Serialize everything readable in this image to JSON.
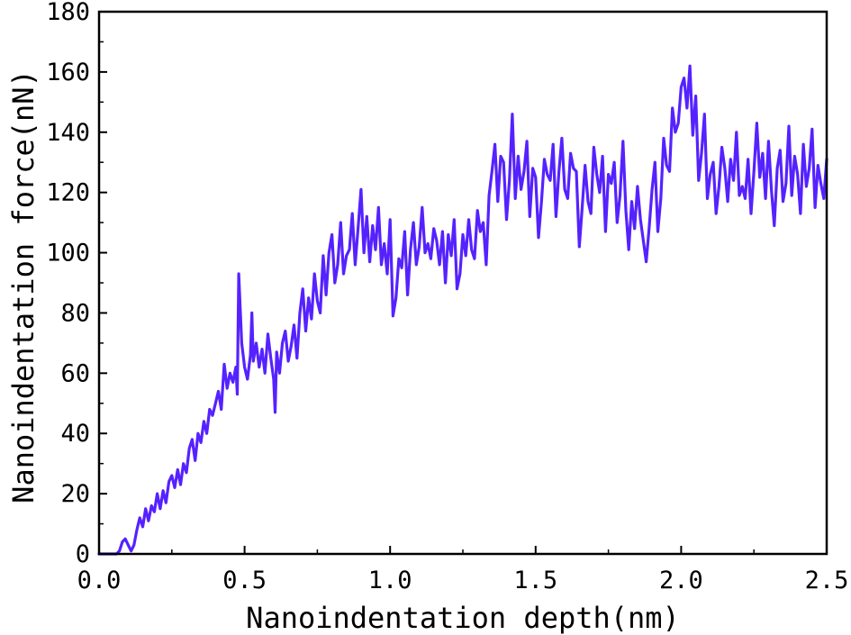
{
  "chart_data": {
    "type": "line",
    "title": "",
    "xlabel": "Nanoindentation depth(nm)",
    "ylabel": "Nanoindentation force(nN)",
    "xlim": [
      0.0,
      2.5
    ],
    "ylim": [
      0,
      180
    ],
    "xticks": [
      0.0,
      0.5,
      1.0,
      1.5,
      2.0,
      2.5
    ],
    "xtick_labels": [
      "0.0",
      "0.5",
      "1.0",
      "1.5",
      "2.0",
      "2.5"
    ],
    "yticks": [
      0,
      20,
      40,
      60,
      80,
      100,
      120,
      140,
      160,
      180
    ],
    "ytick_labels": [
      "0",
      "20",
      "40",
      "60",
      "80",
      "100",
      "120",
      "140",
      "160",
      "180"
    ],
    "grid": false,
    "legend": "none",
    "line_color": "#5522ff",
    "series": [
      {
        "x": [
          0.0,
          0.02,
          0.04,
          0.06,
          0.07,
          0.08,
          0.09,
          0.1,
          0.11,
          0.12,
          0.13,
          0.14,
          0.15,
          0.16,
          0.17,
          0.18,
          0.19,
          0.2,
          0.21,
          0.22,
          0.23,
          0.24,
          0.25,
          0.26,
          0.27,
          0.28,
          0.29,
          0.3,
          0.31,
          0.32,
          0.33,
          0.34,
          0.35,
          0.36,
          0.37,
          0.38,
          0.39,
          0.4,
          0.41,
          0.42,
          0.43,
          0.44,
          0.45,
          0.46,
          0.47,
          0.475,
          0.48,
          0.49,
          0.5,
          0.51,
          0.52,
          0.525,
          0.53,
          0.54,
          0.55,
          0.56,
          0.57,
          0.58,
          0.59,
          0.6,
          0.605,
          0.61,
          0.62,
          0.63,
          0.64,
          0.65,
          0.66,
          0.67,
          0.68,
          0.69,
          0.7,
          0.71,
          0.72,
          0.73,
          0.74,
          0.75,
          0.76,
          0.77,
          0.78,
          0.79,
          0.8,
          0.81,
          0.82,
          0.83,
          0.84,
          0.85,
          0.86,
          0.87,
          0.88,
          0.89,
          0.9,
          0.91,
          0.92,
          0.93,
          0.94,
          0.95,
          0.96,
          0.97,
          0.98,
          0.99,
          1.0,
          1.01,
          1.02,
          1.03,
          1.04,
          1.05,
          1.06,
          1.07,
          1.08,
          1.09,
          1.1,
          1.11,
          1.12,
          1.13,
          1.14,
          1.15,
          1.16,
          1.17,
          1.18,
          1.19,
          1.2,
          1.21,
          1.22,
          1.23,
          1.24,
          1.25,
          1.26,
          1.27,
          1.28,
          1.29,
          1.3,
          1.31,
          1.32,
          1.33,
          1.34,
          1.35,
          1.36,
          1.37,
          1.38,
          1.39,
          1.4,
          1.41,
          1.42,
          1.43,
          1.44,
          1.45,
          1.46,
          1.47,
          1.48,
          1.49,
          1.5,
          1.51,
          1.52,
          1.53,
          1.54,
          1.55,
          1.56,
          1.57,
          1.58,
          1.59,
          1.6,
          1.61,
          1.62,
          1.63,
          1.64,
          1.65,
          1.66,
          1.67,
          1.68,
          1.69,
          1.7,
          1.71,
          1.72,
          1.73,
          1.74,
          1.75,
          1.76,
          1.77,
          1.78,
          1.79,
          1.8,
          1.81,
          1.82,
          1.83,
          1.84,
          1.85,
          1.86,
          1.87,
          1.88,
          1.89,
          1.9,
          1.91,
          1.92,
          1.93,
          1.94,
          1.95,
          1.96,
          1.97,
          1.98,
          1.99,
          2.0,
          2.01,
          2.02,
          2.03,
          2.04,
          2.05,
          2.06,
          2.07,
          2.08,
          2.09,
          2.1,
          2.11,
          2.12,
          2.13,
          2.14,
          2.15,
          2.16,
          2.17,
          2.18,
          2.19,
          2.2,
          2.21,
          2.22,
          2.23,
          2.24,
          2.25,
          2.26,
          2.27,
          2.28,
          2.29,
          2.3,
          2.31,
          2.32,
          2.33,
          2.34,
          2.35,
          2.36,
          2.37,
          2.38,
          2.39,
          2.4,
          2.41,
          2.42,
          2.43,
          2.44,
          2.45,
          2.46,
          2.47,
          2.48,
          2.49,
          2.5
        ],
        "y": [
          0,
          0,
          0,
          0,
          1,
          4,
          5,
          3,
          1,
          3,
          8,
          12,
          9,
          15,
          11,
          16,
          14,
          20,
          15,
          21,
          17,
          24,
          26,
          22,
          28,
          23,
          30,
          27,
          35,
          38,
          31,
          40,
          37,
          44,
          40,
          48,
          46,
          50,
          54,
          48,
          63,
          55,
          60,
          57,
          62,
          53,
          93,
          70,
          62,
          58,
          66,
          80,
          64,
          70,
          62,
          68,
          60,
          73,
          65,
          58,
          47,
          67,
          60,
          70,
          74,
          64,
          69,
          76,
          65,
          80,
          88,
          74,
          85,
          78,
          93,
          84,
          80,
          99,
          86,
          100,
          106,
          90,
          96,
          110,
          93,
          99,
          101,
          113,
          96,
          108,
          121,
          100,
          112,
          97,
          109,
          101,
          115,
          96,
          103,
          93,
          111,
          79,
          85,
          98,
          95,
          107,
          86,
          101,
          110,
          96,
          102,
          115,
          100,
          103,
          98,
          108,
          104,
          96,
          107,
          90,
          106,
          99,
          111,
          88,
          93,
          106,
          99,
          111,
          101,
          98,
          114,
          107,
          110,
          96,
          119,
          127,
          136,
          117,
          132,
          130,
          111,
          124,
          146,
          118,
          132,
          121,
          127,
          137,
          112,
          128,
          125,
          105,
          117,
          131,
          126,
          124,
          136,
          112,
          127,
          138,
          121,
          118,
          133,
          128,
          127,
          102,
          115,
          129,
          117,
          113,
          135,
          126,
          120,
          132,
          107,
          126,
          123,
          130,
          110,
          119,
          137,
          114,
          101,
          117,
          108,
          122,
          111,
          104,
          97,
          108,
          121,
          130,
          107,
          118,
          138,
          129,
          127,
          148,
          140,
          143,
          155,
          158,
          148,
          162,
          139,
          152,
          124,
          133,
          146,
          118,
          126,
          130,
          113,
          122,
          135,
          128,
          117,
          131,
          124,
          140,
          119,
          122,
          118,
          131,
          113,
          127,
          143,
          125,
          133,
          118,
          137,
          121,
          109,
          128,
          134,
          117,
          123,
          142,
          119,
          132,
          126,
          113,
          136,
          122,
          128,
          141,
          115,
          129,
          123,
          118,
          131
        ]
      }
    ]
  }
}
